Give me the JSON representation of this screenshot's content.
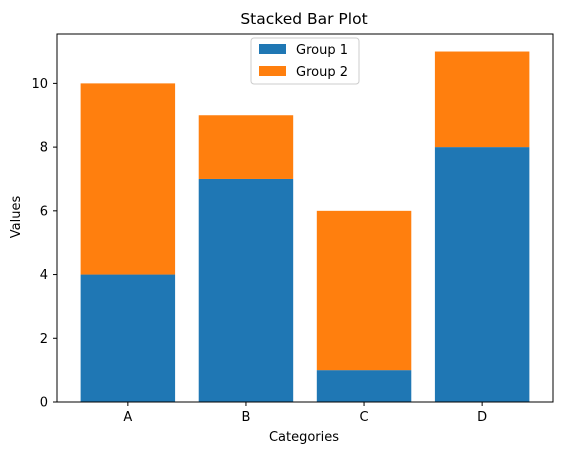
{
  "chart_data": {
    "type": "bar",
    "stacked": true,
    "title": "Stacked Bar Plot",
    "xlabel": "Categories",
    "ylabel": "Values",
    "categories": [
      "A",
      "B",
      "C",
      "D"
    ],
    "series": [
      {
        "name": "Group 1",
        "values": [
          4,
          7,
          1,
          8
        ],
        "color": "#1f77b4"
      },
      {
        "name": "Group 2",
        "values": [
          6,
          2,
          5,
          3
        ],
        "color": "#ff7f0e"
      }
    ],
    "ylim": [
      0,
      11.55
    ],
    "yticks": [
      0,
      2,
      4,
      6,
      8,
      10
    ],
    "grid": false,
    "legend_position": "top-center"
  }
}
